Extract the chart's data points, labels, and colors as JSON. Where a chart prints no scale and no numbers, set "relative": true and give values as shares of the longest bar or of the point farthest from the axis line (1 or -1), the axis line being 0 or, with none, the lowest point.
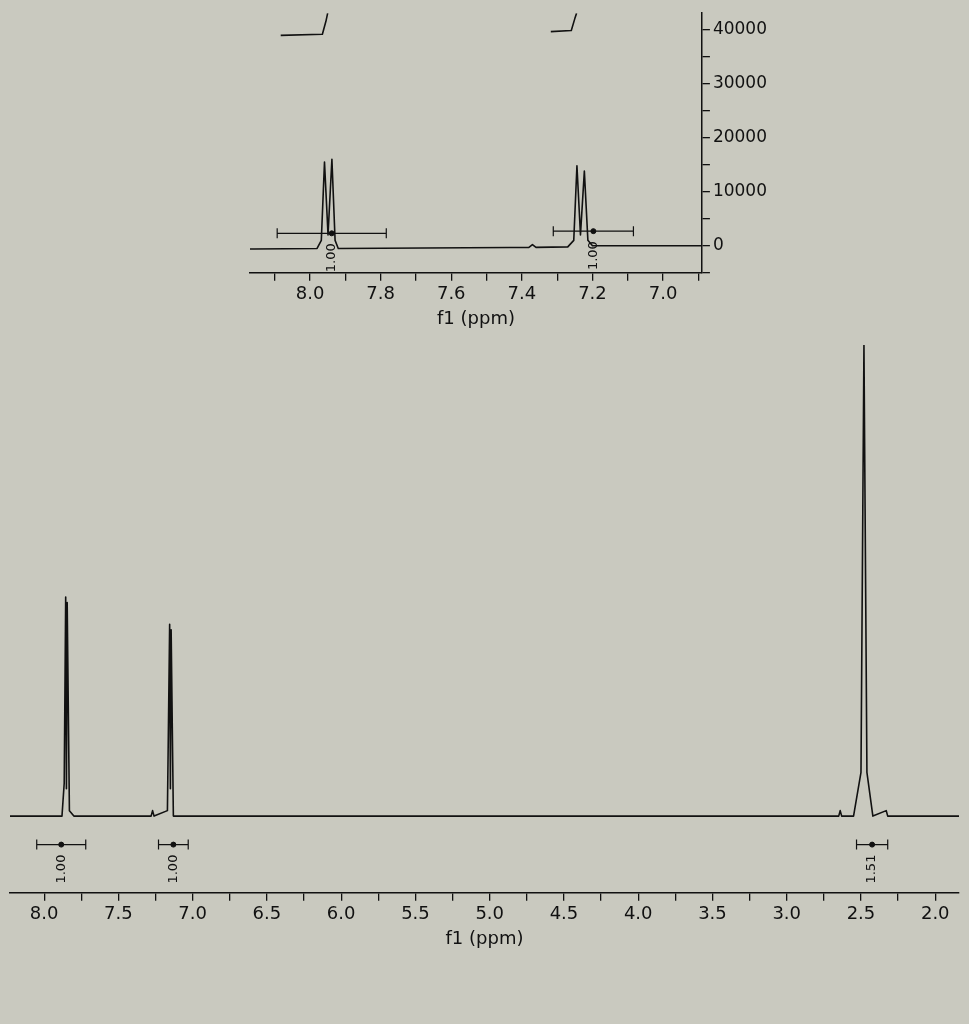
{
  "chart_data": [
    {
      "type": "line",
      "xlabel": "f1 (ppm)",
      "xlim": [
        8.17,
        6.89
      ],
      "xticks": [
        {
          "value": 8.1,
          "label": null
        },
        {
          "value": 8,
          "label": "8.0"
        },
        {
          "value": 7.9,
          "label": null
        },
        {
          "value": 7.8,
          "label": "7.8"
        },
        {
          "value": 7.7,
          "label": null
        },
        {
          "value": 7.6,
          "label": "7.6"
        },
        {
          "value": 7.5,
          "label": null
        },
        {
          "value": 7.4,
          "label": "7.4"
        },
        {
          "value": 7.3,
          "label": null
        },
        {
          "value": 7.2,
          "label": "7.2"
        },
        {
          "value": 7.1,
          "label": null
        },
        {
          "value": 7,
          "label": "7.0"
        },
        {
          "value": 6.9,
          "label": null
        }
      ],
      "ylim": [
        -5000,
        43000
      ],
      "yticks": [
        {
          "value": -5000,
          "label": null
        },
        0,
        {
          "value": 5000,
          "label": null
        },
        10000,
        {
          "value": 15000,
          "label": null
        },
        20000,
        {
          "value": 25000,
          "label": null
        },
        30000,
        {
          "value": 35000,
          "label": null
        },
        40000
      ],
      "series": [
        {
          "color": "#111111",
          "x": [
            8.17,
            7.98,
            7.968,
            7.959,
            7.949,
            7.938,
            7.929,
            7.92,
            7.38,
            7.37,
            7.36,
            7.27,
            7.253,
            7.244,
            7.234,
            7.223,
            7.213,
            7.2,
            6.89
          ],
          "values": [
            -600,
            -500,
            1000,
            15500,
            2000,
            16000,
            1000,
            -500,
            -300,
            200,
            -300,
            -200,
            1000,
            14800,
            2000,
            13800,
            1000,
            0,
            0
          ]
        },
        {
          "color": "#111111",
          "x": [
            8.083,
            7.965,
            7.955,
            7.95
          ],
          "values": [
            38900,
            39100,
            41500,
            43000
          ]
        },
        {
          "color": "#111111",
          "x": [
            7.318,
            7.26,
            7.25,
            7.245
          ],
          "values": [
            39600,
            39800,
            42000,
            43000
          ]
        },
        {
          "type": "scatter",
          "color": "#111111",
          "x": [
            7.9385,
            7.1975
          ],
          "values": [
            2300,
            2700
          ],
          "xerrors": [
            [
              7.784,
              8.093
            ],
            [
              7.084,
              7.311
            ]
          ]
        }
      ],
      "annotations": [
        "1.00",
        "1.00"
      ],
      "grid": false,
      "legend": false
    },
    {
      "type": "line",
      "xlabel": "f1 (ppm)",
      "xlim": [
        8.23,
        1.84
      ],
      "relative": true,
      "xticks": [
        {
          "value": 8,
          "label": "8.0"
        },
        {
          "value": 7.75,
          "label": null
        },
        {
          "value": 7.5,
          "label": "7.5"
        },
        {
          "value": 7.25,
          "label": null
        },
        {
          "value": 7,
          "label": "7.0"
        },
        {
          "value": 6.75,
          "label": null
        },
        {
          "value": 6.5,
          "label": "6.5"
        },
        {
          "value": 6.25,
          "label": null
        },
        {
          "value": 6,
          "label": "6.0"
        },
        {
          "value": 5.75,
          "label": null
        },
        {
          "value": 5.5,
          "label": "5.5"
        },
        {
          "value": 5.25,
          "label": null
        },
        {
          "value": 5,
          "label": "5.0"
        },
        {
          "value": 4.75,
          "label": null
        },
        {
          "value": 4.5,
          "label": "4.5"
        },
        {
          "value": 4.25,
          "label": null
        },
        {
          "value": 4,
          "label": "4.0"
        },
        {
          "value": 3.75,
          "label": null
        },
        {
          "value": 3.5,
          "label": "3.5"
        },
        {
          "value": 3.25,
          "label": null
        },
        {
          "value": 3,
          "label": "3.0"
        },
        {
          "value": 2.75,
          "label": null
        },
        {
          "value": 2.5,
          "label": "2.5"
        },
        {
          "value": 2.25,
          "label": null
        },
        {
          "value": 2,
          "label": "2.0"
        }
      ],
      "series": [
        {
          "color": "#111111",
          "x": [
            8.23,
            7.88,
            7.865,
            7.855,
            7.85,
            7.845,
            7.83,
            7.8,
            7.28,
            7.27,
            7.26,
            7.17,
            7.155,
            7.15,
            7.145,
            7.13,
            2.65,
            2.64,
            2.63,
            2.55,
            2.5,
            2.48,
            2.46,
            2.42,
            2.33,
            2.32,
            1.84
          ],
          "values": [
            0.14,
            0.14,
            0.2,
            0.54,
            0.19,
            0.53,
            0.15,
            0.14,
            0.14,
            0.15,
            0.14,
            0.15,
            0.49,
            0.19,
            0.48,
            0.14,
            0.14,
            0.15,
            0.14,
            0.14,
            0.22,
            1,
            0.22,
            0.14,
            0.15,
            0.14,
            0.14
          ]
        },
        {
          "type": "scatter",
          "color": "#111111",
          "x": [
            7.885,
            7.13,
            2.425
          ],
          "values": [
            0.088,
            0.088,
            0.088
          ],
          "xerrors": [
            [
              7.72,
              8.05
            ],
            [
              7.03,
              7.23
            ],
            [
              2.32,
              2.53
            ]
          ]
        }
      ],
      "annotations": [
        "1.00",
        "1.00",
        "1.51"
      ],
      "grid": false,
      "legend": false
    }
  ]
}
